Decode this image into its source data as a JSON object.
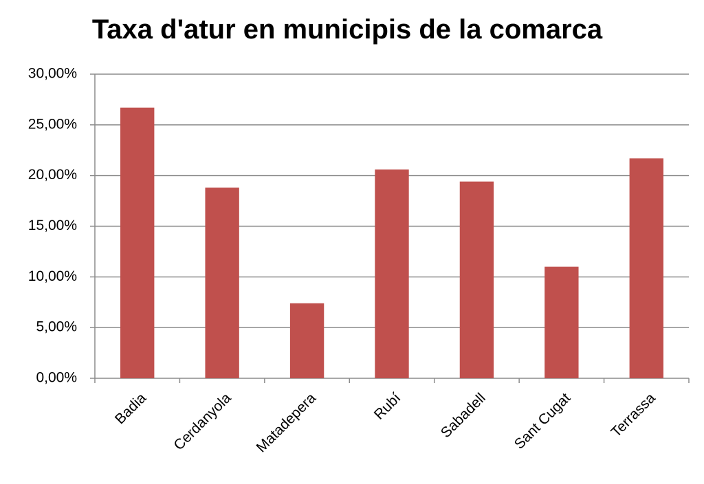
{
  "chart_data": {
    "type": "bar",
    "title": "Taxa d'atur en municipis de la comarca",
    "categories": [
      "Badia",
      "Cerdanyola",
      "Matadepera",
      "Rubí",
      "Sabadell",
      "Sant Cugat",
      "Terrassa"
    ],
    "values": [
      26.7,
      18.8,
      7.4,
      20.6,
      19.4,
      11.0,
      21.7
    ],
    "color": "#c0504d",
    "ylim": [
      0,
      30
    ],
    "yticks": [
      {
        "value": 0,
        "label": "0,00%"
      },
      {
        "value": 5,
        "label": "5,00%"
      },
      {
        "value": 10,
        "label": "10,00%"
      },
      {
        "value": 15,
        "label": "15,00%"
      },
      {
        "value": 20,
        "label": "20,00%"
      },
      {
        "value": 25,
        "label": "25,00%"
      },
      {
        "value": 30,
        "label": "30,00%"
      }
    ],
    "grid": true
  }
}
